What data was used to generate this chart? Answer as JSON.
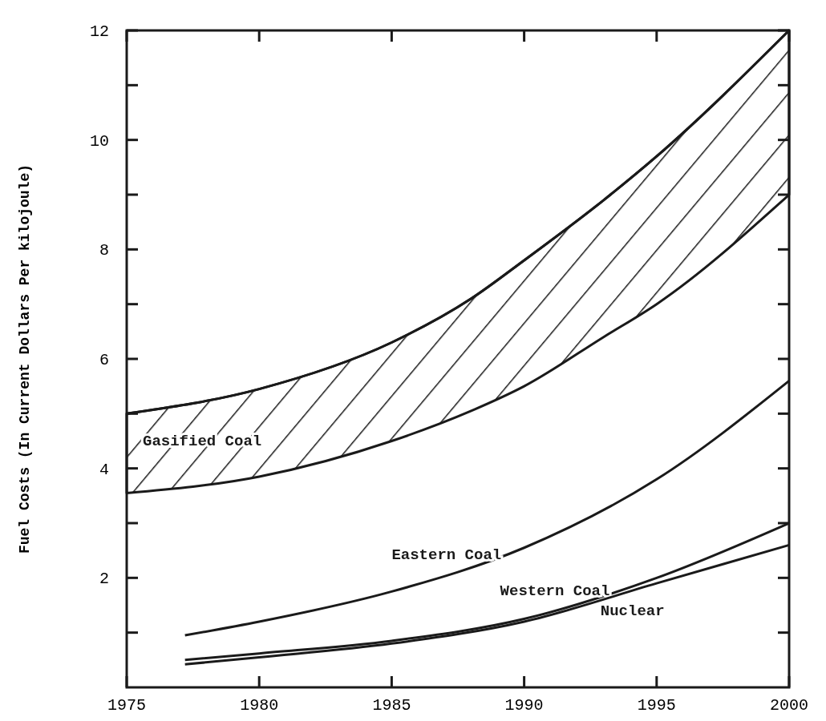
{
  "chart_data": {
    "type": "line",
    "ylabel": "Fuel Costs (In Current Dollars Per kilojoule)",
    "xlim": [
      1975,
      2000
    ],
    "xticks": [
      1975,
      1980,
      1985,
      1990,
      1995,
      2000
    ],
    "ylim": [
      0,
      12
    ],
    "yticks": [
      {
        "value": 1,
        "label": null
      },
      2,
      {
        "value": 3,
        "label": null
      },
      4,
      {
        "value": 5,
        "label": null
      },
      6,
      {
        "value": 7,
        "label": null
      },
      8,
      {
        "value": 9,
        "label": null
      },
      10,
      {
        "value": 11,
        "label": null
      },
      12
    ],
    "grid": false,
    "legend": false,
    "marker": "none",
    "line_style": "solid",
    "series": [
      {
        "name": "Gasified Coal",
        "color": "#1a1a1a",
        "x": [
          1975,
          1980,
          1985,
          1988,
          1990,
          1993,
          1995,
          2000
        ],
        "values": [
          5.0,
          5.45,
          6.3,
          7.1,
          7.8,
          8.9,
          9.7,
          12.0
        ],
        "upper": [
          5.0,
          5.45,
          6.3,
          7.1,
          7.8,
          8.9,
          9.7,
          12.0
        ],
        "lower": [
          3.55,
          3.85,
          4.5,
          5.05,
          5.5,
          6.4,
          7.0,
          9.0
        ]
      },
      {
        "name": "Eastern Coal",
        "color": "#1a1a1a",
        "x": [
          1977.2,
          1980,
          1985,
          1990,
          1995,
          2000
        ],
        "values": [
          0.95,
          1.2,
          1.75,
          2.55,
          3.8,
          5.6
        ]
      },
      {
        "name": "Western Coal",
        "color": "#1a1a1a",
        "x": [
          1977.2,
          1980,
          1985,
          1990,
          1995,
          2000
        ],
        "values": [
          0.5,
          0.62,
          0.85,
          1.25,
          2.0,
          3.0
        ]
      },
      {
        "name": "Nuclear",
        "color": "#1a1a1a",
        "x": [
          1977.2,
          1980,
          1985,
          1990,
          1995,
          2000
        ],
        "values": [
          0.42,
          0.55,
          0.8,
          1.2,
          1.9,
          2.6
        ]
      }
    ]
  }
}
